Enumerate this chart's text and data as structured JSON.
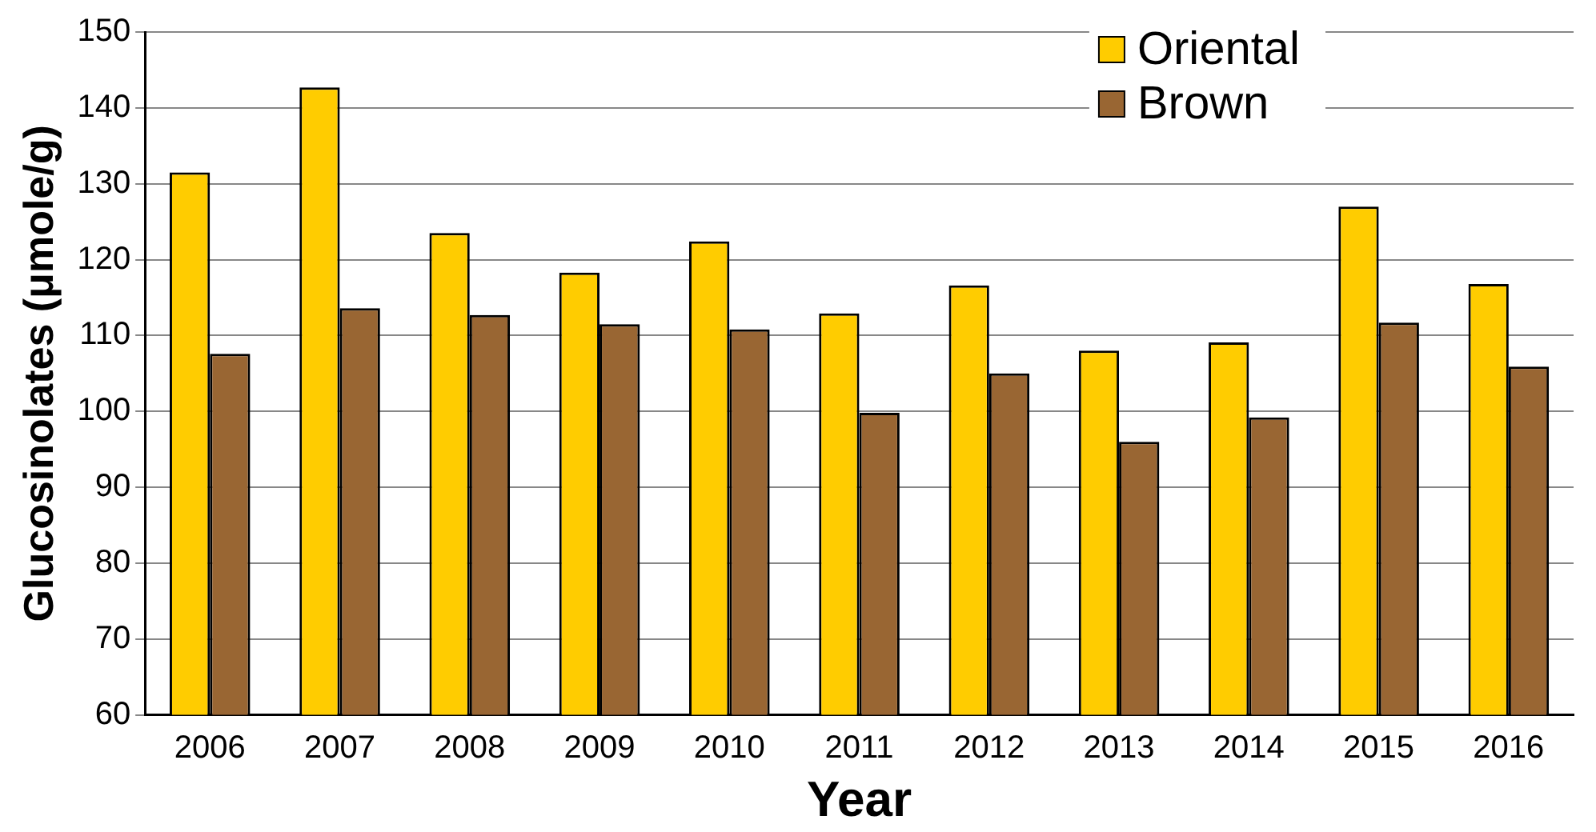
{
  "chart_data": {
    "type": "bar",
    "xlabel": "Year",
    "ylabel": "Glucosinolates (μmole/g)",
    "categories": [
      "2006",
      "2007",
      "2008",
      "2009",
      "2010",
      "2011",
      "2012",
      "2013",
      "2014",
      "2015",
      "2016"
    ],
    "series": [
      {
        "name": "Oriental",
        "color": "#ffcc00",
        "values": [
          131.5,
          142.7,
          123.5,
          118.3,
          122.4,
          112.9,
          116.6,
          108,
          109.1,
          127,
          116.8
        ]
      },
      {
        "name": "Brown",
        "color": "#996633",
        "values": [
          107.6,
          113.6,
          112.7,
          111.5,
          110.8,
          99.8,
          105,
          96,
          99.2,
          111.7,
          105.9
        ]
      }
    ],
    "ylim": [
      60,
      150
    ],
    "yticks": [
      60,
      70,
      80,
      90,
      100,
      110,
      120,
      130,
      140,
      150
    ],
    "grid": "y",
    "legend": "top right"
  }
}
